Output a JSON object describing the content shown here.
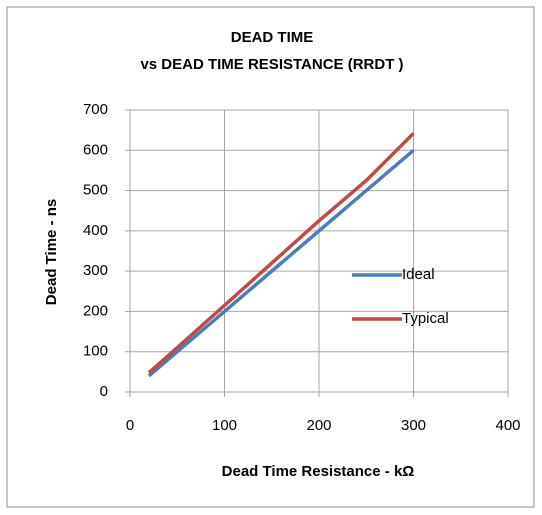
{
  "chart_data": {
    "type": "line",
    "title": "DEAD TIME",
    "subtitle": "vs DEAD TIME RESISTANCE (RRDT )",
    "xlabel": "Dead Time Resistance - kΩ",
    "ylabel": "Dead Time - ns",
    "x": [
      20,
      50,
      100,
      150,
      200,
      250,
      300
    ],
    "series": [
      {
        "name": "Ideal",
        "color": "#4a7ebb",
        "values": [
          40,
          100,
          200,
          300,
          400,
          500,
          600
        ]
      },
      {
        "name": "Typical",
        "color": "#be4b48",
        "values": [
          48,
          110,
          215,
          320,
          425,
          525,
          642
        ]
      }
    ],
    "xlim": [
      0,
      400
    ],
    "xticks": [
      0,
      100,
      200,
      300,
      400
    ],
    "ylim": [
      0,
      700
    ],
    "yticks": [
      0,
      100,
      200,
      300,
      400,
      500,
      600,
      700
    ],
    "grid": true,
    "legend": "right"
  }
}
